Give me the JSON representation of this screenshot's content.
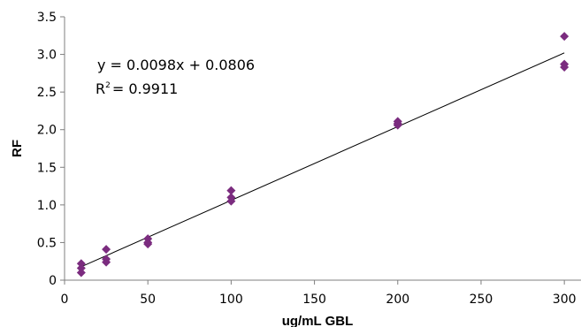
{
  "chart_data": {
    "type": "scatter",
    "xlabel": "ug/mL GBL",
    "ylabel": "RF",
    "xlim": [
      0,
      310
    ],
    "ylim": [
      0,
      3.5
    ],
    "x_ticks": [
      0,
      50,
      100,
      150,
      200,
      250,
      300
    ],
    "y_ticks": [
      0,
      0.5,
      1.0,
      1.5,
      2.0,
      2.5,
      3.0,
      3.5
    ],
    "x_tick_labels": [
      "0",
      "50",
      "100",
      "150",
      "200",
      "250",
      "300"
    ],
    "y_tick_labels": [
      "0",
      "0.5",
      "1.0",
      "1.5",
      "2.0",
      "2.5",
      "3.0",
      "3.5"
    ],
    "grid": false,
    "legend": "none",
    "series": [
      {
        "marker": "diamond",
        "color": "#7B2C7F",
        "points": [
          {
            "x": 10,
            "y": 0.22
          },
          {
            "x": 10,
            "y": 0.16
          },
          {
            "x": 10,
            "y": 0.1
          },
          {
            "x": 25,
            "y": 0.41
          },
          {
            "x": 25,
            "y": 0.28
          },
          {
            "x": 25,
            "y": 0.24
          },
          {
            "x": 50,
            "y": 0.55
          },
          {
            "x": 50,
            "y": 0.5
          },
          {
            "x": 50,
            "y": 0.48
          },
          {
            "x": 100,
            "y": 1.19
          },
          {
            "x": 100,
            "y": 1.1
          },
          {
            "x": 100,
            "y": 1.05
          },
          {
            "x": 200,
            "y": 2.11
          },
          {
            "x": 200,
            "y": 2.08
          },
          {
            "x": 200,
            "y": 2.06
          },
          {
            "x": 300,
            "y": 3.24
          },
          {
            "x": 300,
            "y": 2.87
          },
          {
            "x": 300,
            "y": 2.83
          }
        ]
      }
    ],
    "trendline": {
      "slope": 0.0098,
      "intercept": 0.0806,
      "x_range": [
        10,
        300
      ],
      "color": "#000000"
    },
    "annotations": {
      "equation": "y = 0.0098x + 0.0806",
      "r2_label": "R",
      "r2_sup": "2",
      "r2_value": "= 0.9911"
    }
  }
}
